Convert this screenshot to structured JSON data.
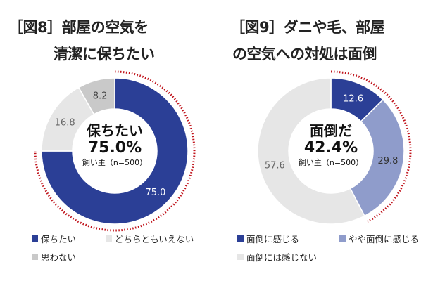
{
  "chart_data": [
    {
      "type": "pie",
      "title_line1": "［図8］部屋の空気を",
      "title_line2": "清潔に保ちたい",
      "center_label": "保ちたい",
      "center_value": "75.0%",
      "center_note": "飼い主（n=500）",
      "categories": [
        "保ちたい",
        "どちらともいえない",
        "思わない"
      ],
      "values": [
        75.0,
        16.8,
        8.2
      ],
      "value_labels": [
        "75.0",
        "16.8",
        "8.2"
      ],
      "colors": [
        "#2b3f96",
        "#e6e6e6",
        "#c9c9c9"
      ],
      "label_colors": [
        "#ffffff",
        "#666666",
        "#444444"
      ],
      "highlight_total": 75.0
    },
    {
      "type": "pie",
      "title_line1": "［図9］ダニや毛、部屋",
      "title_line2": "の空気への対処は面倒",
      "center_label": "面倒だ",
      "center_value": "42.4%",
      "center_note": "飼い主（n=500）",
      "categories": [
        "面倒に感じる",
        "やや面倒に感じる",
        "面倒には感じない"
      ],
      "values": [
        12.6,
        29.8,
        57.6
      ],
      "value_labels": [
        "12.6",
        "29.8",
        "57.6"
      ],
      "colors": [
        "#2b3f96",
        "#8f9ccb",
        "#e6e6e6"
      ],
      "label_colors": [
        "#ffffff",
        "#333333",
        "#666666"
      ],
      "highlight_total": 42.4
    }
  ],
  "highlight_color": "#c0141c"
}
